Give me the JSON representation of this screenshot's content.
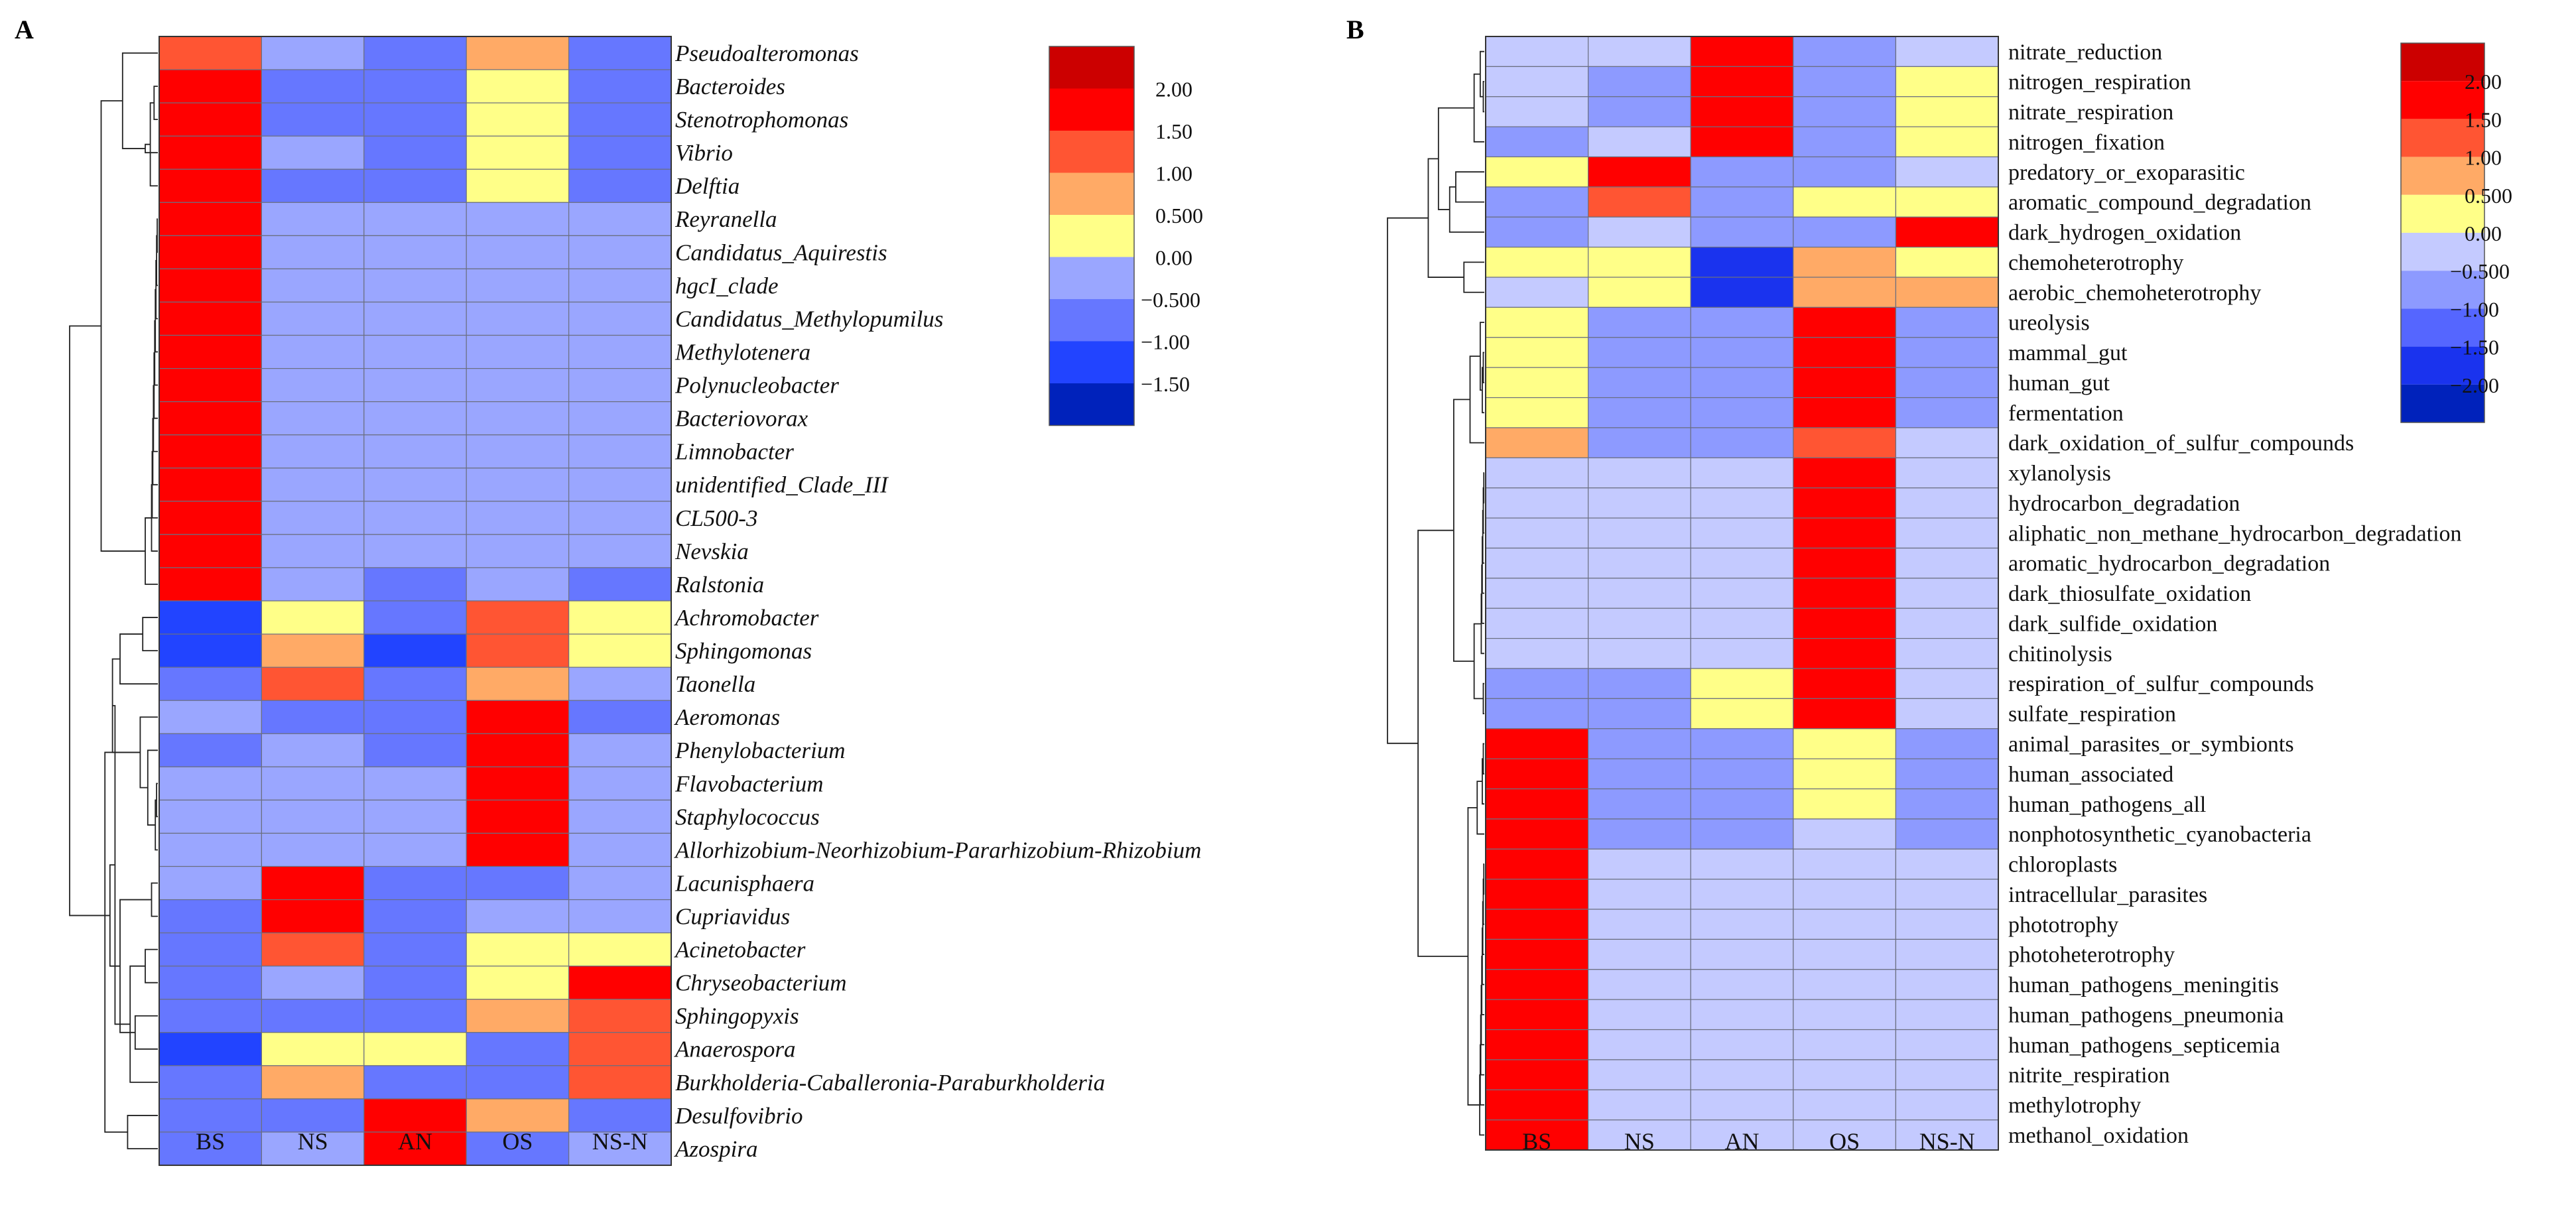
{
  "chart_data": [
    {
      "type": "heatmap",
      "panel_label": "A",
      "columns": [
        "BS",
        "NS",
        "AN",
        "OS",
        "NS-N"
      ],
      "rows": [
        "Pseudoalteromonas",
        "Bacteroides",
        "Stenotrophomonas",
        "Vibrio",
        "Delftia",
        "Reyranella",
        "Candidatus_Aquirestis",
        "hgcI_clade",
        "Candidatus_Methylopumilus",
        "Methylotenera",
        "Polynucleobacter",
        "Bacteriovorax",
        "Limnobacter",
        "unidentified_Clade_III",
        "CL500-3",
        "Nevskia",
        "Ralstonia",
        "Achromobacter",
        "Sphingomonas",
        "Taonella",
        "Aeromonas",
        "Phenylobacterium",
        "Flavobacterium",
        "Staphylococcus",
        "Allorhizobium-Neorhizobium-Pararhizobium-Rhizobium",
        "Lacunisphaera",
        "Cupriavidus",
        "Acinetobacter",
        "Chryseobacterium",
        "Sphingopyxis",
        "Anaerospora",
        "Burkholderia-Caballeronia-Paraburkholderia",
        "Desulfovibrio",
        "Azospira"
      ],
      "values": [
        [
          1.25,
          -0.25,
          -0.75,
          0.75,
          -0.75
        ],
        [
          1.75,
          -0.75,
          -0.75,
          0.25,
          -0.75
        ],
        [
          1.75,
          -0.75,
          -0.75,
          0.25,
          -0.75
        ],
        [
          1.75,
          -0.25,
          -0.75,
          0.25,
          -0.75
        ],
        [
          1.75,
          -0.75,
          -0.75,
          0.25,
          -0.75
        ],
        [
          1.75,
          -0.25,
          -0.25,
          -0.25,
          -0.25
        ],
        [
          1.75,
          -0.25,
          -0.25,
          -0.25,
          -0.25
        ],
        [
          1.75,
          -0.25,
          -0.25,
          -0.25,
          -0.25
        ],
        [
          1.75,
          -0.25,
          -0.25,
          -0.25,
          -0.25
        ],
        [
          1.75,
          -0.25,
          -0.25,
          -0.25,
          -0.25
        ],
        [
          1.75,
          -0.25,
          -0.25,
          -0.25,
          -0.25
        ],
        [
          1.75,
          -0.25,
          -0.25,
          -0.25,
          -0.25
        ],
        [
          1.75,
          -0.25,
          -0.25,
          -0.25,
          -0.25
        ],
        [
          1.75,
          -0.25,
          -0.25,
          -0.25,
          -0.25
        ],
        [
          1.75,
          -0.25,
          -0.25,
          -0.25,
          -0.25
        ],
        [
          1.75,
          -0.25,
          -0.25,
          -0.25,
          -0.25
        ],
        [
          1.75,
          -0.25,
          -0.75,
          -0.25,
          -0.75
        ],
        [
          -1.25,
          0.25,
          -0.75,
          1.25,
          0.25
        ],
        [
          -1.25,
          0.75,
          -1.25,
          1.25,
          0.25
        ],
        [
          -0.75,
          1.25,
          -0.75,
          0.75,
          -0.25
        ],
        [
          -0.25,
          -0.75,
          -0.75,
          1.75,
          -0.75
        ],
        [
          -0.75,
          -0.25,
          -0.75,
          1.75,
          -0.25
        ],
        [
          -0.25,
          -0.25,
          -0.25,
          1.75,
          -0.25
        ],
        [
          -0.25,
          -0.25,
          -0.25,
          1.75,
          -0.25
        ],
        [
          -0.25,
          -0.25,
          -0.25,
          1.75,
          -0.25
        ],
        [
          -0.25,
          1.75,
          -0.75,
          -0.75,
          -0.25
        ],
        [
          -0.75,
          1.75,
          -0.75,
          -0.25,
          -0.25
        ],
        [
          -0.75,
          1.25,
          -0.75,
          0.25,
          0.25
        ],
        [
          -0.75,
          -0.25,
          -0.75,
          0.25,
          1.75
        ],
        [
          -0.75,
          -0.75,
          -0.75,
          0.75,
          1.25
        ],
        [
          -1.25,
          0.25,
          0.25,
          -0.75,
          1.25
        ],
        [
          -0.75,
          0.75,
          -0.75,
          -0.75,
          1.25
        ],
        [
          -0.75,
          -0.75,
          1.75,
          0.75,
          -0.75
        ],
        [
          -0.75,
          -0.25,
          1.75,
          -0.75,
          -0.25
        ]
      ],
      "legend": {
        "tick_labels": [
          "2.00",
          "1.50",
          "1.00",
          "0.500",
          "0.00",
          "−0.500",
          "−1.00",
          "−1.50"
        ],
        "bins": [
          {
            "min": 2.0,
            "max": 2.5,
            "color": "#cc0000"
          },
          {
            "min": 1.5,
            "max": 2.0,
            "color": "#ff0000"
          },
          {
            "min": 1.0,
            "max": 1.5,
            "color": "#ff5533"
          },
          {
            "min": 0.5,
            "max": 1.0,
            "color": "#ffaa66"
          },
          {
            "min": 0.0,
            "max": 0.5,
            "color": "#ffff88"
          },
          {
            "min": -0.5,
            "max": 0.0,
            "color": "#9aa6ff"
          },
          {
            "min": -1.0,
            "max": -0.5,
            "color": "#6677ff"
          },
          {
            "min": -1.5,
            "max": -1.0,
            "color": "#2244ff"
          },
          {
            "min": -2.0,
            "max": -1.5,
            "color": "#0022bb"
          }
        ]
      },
      "dendrogram": {
        "leaf_order": [
          0,
          1,
          2,
          3,
          4,
          5,
          6,
          7,
          8,
          9,
          10,
          11,
          12,
          13,
          14,
          15,
          16,
          17,
          18,
          19,
          20,
          21,
          22,
          23,
          24,
          25,
          26,
          27,
          28,
          29,
          30,
          31,
          32,
          33
        ],
        "merges": [
          [
            1,
            2,
            0.03
          ],
          [
            34,
            4,
            0.06
          ],
          [
            35,
            3,
            0.1
          ],
          [
            0,
            36,
            0.28
          ],
          [
            5,
            6,
            0.005
          ],
          [
            38,
            7,
            0.01
          ],
          [
            39,
            8,
            0.015
          ],
          [
            40,
            9,
            0.02
          ],
          [
            41,
            10,
            0.025
          ],
          [
            42,
            11,
            0.03
          ],
          [
            43,
            12,
            0.035
          ],
          [
            44,
            13,
            0.04
          ],
          [
            45,
            14,
            0.045
          ],
          [
            46,
            15,
            0.05
          ],
          [
            47,
            16,
            0.1
          ],
          [
            37,
            48,
            0.45
          ],
          [
            17,
            18,
            0.12
          ],
          [
            50,
            19,
            0.3
          ],
          [
            22,
            23,
            0.01
          ],
          [
            52,
            24,
            0.02
          ],
          [
            21,
            53,
            0.08
          ],
          [
            20,
            54,
            0.14
          ],
          [
            51,
            55,
            0.36
          ],
          [
            25,
            26,
            0.05
          ],
          [
            27,
            28,
            0.1
          ],
          [
            29,
            30,
            0.18
          ],
          [
            58,
            31,
            0.22
          ],
          [
            57,
            59,
            0.3
          ],
          [
            56,
            60,
            0.34
          ],
          [
            32,
            33,
            0.24
          ],
          [
            61,
            62,
            0.38
          ],
          [
            55,
            63,
            0.42
          ],
          [
            49,
            64,
            0.7
          ]
        ]
      }
    },
    {
      "type": "heatmap",
      "panel_label": "B",
      "columns": [
        "BS",
        "NS",
        "AN",
        "OS",
        "NS-N"
      ],
      "rows": [
        "nitrate_reduction",
        "nitrogen_respiration",
        "nitrate_respiration",
        "nitrogen_fixation",
        "predatory_or_exoparasitic",
        "aromatic_compound_degradation",
        "dark_hydrogen_oxidation",
        "chemoheterotrophy",
        "aerobic_chemoheterotrophy",
        "ureolysis",
        "mammal_gut",
        "human_gut",
        "fermentation",
        "dark_oxidation_of_sulfur_compounds",
        "xylanolysis",
        "hydrocarbon_degradation",
        "aliphatic_non_methane_hydrocarbon_degradation",
        "aromatic_hydrocarbon_degradation",
        "dark_thiosulfate_oxidation",
        "dark_sulfide_oxidation",
        "chitinolysis",
        "respiration_of_sulfur_compounds",
        "sulfate_respiration",
        "animal_parasites_or_symbionts",
        "human_associated",
        "human_pathogens_all",
        "nonphotosynthetic_cyanobacteria",
        "chloroplasts",
        "intracellular_parasites",
        "phototrophy",
        "photoheterotrophy",
        "human_pathogens_meningitis",
        "human_pathogens_pneumonia",
        "human_pathogens_septicemia",
        "nitrite_respiration",
        "methylotrophy",
        "methanol_oxidation"
      ],
      "values": [
        [
          -0.25,
          -0.25,
          1.75,
          -0.75,
          -0.25
        ],
        [
          -0.25,
          -0.75,
          1.75,
          -0.75,
          0.25
        ],
        [
          -0.25,
          -0.75,
          1.75,
          -0.75,
          0.25
        ],
        [
          -0.75,
          -0.25,
          1.75,
          -0.75,
          0.25
        ],
        [
          0.25,
          1.75,
          -0.75,
          -0.75,
          -0.25
        ],
        [
          -0.75,
          1.25,
          -0.75,
          0.25,
          0.25
        ],
        [
          -0.75,
          -0.25,
          -0.75,
          -0.75,
          1.75
        ],
        [
          0.25,
          0.25,
          -1.75,
          0.75,
          0.25
        ],
        [
          -0.25,
          0.25,
          -1.75,
          0.75,
          0.75
        ],
        [
          0.25,
          -0.75,
          -0.75,
          1.75,
          -0.75
        ],
        [
          0.25,
          -0.75,
          -0.75,
          1.75,
          -0.75
        ],
        [
          0.25,
          -0.75,
          -0.75,
          1.75,
          -0.75
        ],
        [
          0.25,
          -0.75,
          -0.75,
          1.75,
          -0.75
        ],
        [
          0.75,
          -0.75,
          -0.75,
          1.25,
          -0.25
        ],
        [
          -0.25,
          -0.25,
          -0.25,
          1.75,
          -0.25
        ],
        [
          -0.25,
          -0.25,
          -0.25,
          1.75,
          -0.25
        ],
        [
          -0.25,
          -0.25,
          -0.25,
          1.75,
          -0.25
        ],
        [
          -0.25,
          -0.25,
          -0.25,
          1.75,
          -0.25
        ],
        [
          -0.25,
          -0.25,
          -0.25,
          1.75,
          -0.25
        ],
        [
          -0.25,
          -0.25,
          -0.25,
          1.75,
          -0.25
        ],
        [
          -0.25,
          -0.25,
          -0.25,
          1.75,
          -0.25
        ],
        [
          -0.75,
          -0.75,
          0.25,
          1.75,
          -0.25
        ],
        [
          -0.75,
          -0.75,
          0.25,
          1.75,
          -0.25
        ],
        [
          1.75,
          -0.75,
          -0.75,
          0.25,
          -0.75
        ],
        [
          1.75,
          -0.75,
          -0.75,
          0.25,
          -0.75
        ],
        [
          1.75,
          -0.75,
          -0.75,
          0.25,
          -0.75
        ],
        [
          1.75,
          -0.75,
          -0.75,
          -0.25,
          -0.75
        ],
        [
          1.75,
          -0.25,
          -0.25,
          -0.25,
          -0.25
        ],
        [
          1.75,
          -0.25,
          -0.25,
          -0.25,
          -0.25
        ],
        [
          1.75,
          -0.25,
          -0.25,
          -0.25,
          -0.25
        ],
        [
          1.75,
          -0.25,
          -0.25,
          -0.25,
          -0.25
        ],
        [
          1.75,
          -0.25,
          -0.25,
          -0.25,
          -0.25
        ],
        [
          1.75,
          -0.25,
          -0.25,
          -0.25,
          -0.25
        ],
        [
          1.75,
          -0.25,
          -0.25,
          -0.25,
          -0.25
        ],
        [
          1.75,
          -0.25,
          -0.25,
          -0.25,
          -0.25
        ],
        [
          1.75,
          -0.25,
          -0.25,
          -0.25,
          -0.25
        ],
        [
          1.75,
          -0.25,
          -0.25,
          -0.25,
          -0.25
        ]
      ],
      "legend": {
        "tick_labels": [
          "2.00",
          "1.50",
          "1.00",
          "0.500",
          "0.00",
          "−0.500",
          "−1.00",
          "−1.50",
          "−2.00"
        ],
        "bins": [
          {
            "min": 2.0,
            "max": 2.5,
            "color": "#cc0000"
          },
          {
            "min": 1.5,
            "max": 2.0,
            "color": "#ff0000"
          },
          {
            "min": 1.0,
            "max": 1.5,
            "color": "#ff5533"
          },
          {
            "min": 0.5,
            "max": 1.0,
            "color": "#ffaa66"
          },
          {
            "min": 0.0,
            "max": 0.5,
            "color": "#ffff88"
          },
          {
            "min": -0.5,
            "max": 0.0,
            "color": "#c4caff"
          },
          {
            "min": -1.0,
            "max": -0.5,
            "color": "#8d9aff"
          },
          {
            "min": -1.5,
            "max": -1.0,
            "color": "#5566ff"
          },
          {
            "min": -2.0,
            "max": -1.5,
            "color": "#1a33ee"
          },
          {
            "min": -2.5,
            "max": -2.0,
            "color": "#0022bb"
          }
        ]
      },
      "dendrogram": {
        "leaf_order": [
          0,
          1,
          2,
          3,
          4,
          5,
          6,
          7,
          8,
          9,
          10,
          11,
          12,
          13,
          14,
          15,
          16,
          17,
          18,
          19,
          20,
          21,
          22,
          23,
          24,
          25,
          26,
          27,
          28,
          29,
          30,
          31,
          32,
          33,
          34,
          35,
          36
        ],
        "merges": [
          [
            1,
            2,
            0.01
          ],
          [
            37,
            0,
            0.04
          ],
          [
            38,
            3,
            0.1
          ],
          [
            4,
            5,
            0.28
          ],
          [
            40,
            6,
            0.34
          ],
          [
            39,
            41,
            0.45
          ],
          [
            7,
            8,
            0.2
          ],
          [
            42,
            43,
            0.55
          ],
          [
            10,
            11,
            0.01
          ],
          [
            45,
            12,
            0.02
          ],
          [
            9,
            46,
            0.04
          ],
          [
            47,
            13,
            0.14
          ],
          [
            14,
            15,
            0.005
          ],
          [
            49,
            16,
            0.01
          ],
          [
            50,
            17,
            0.015
          ],
          [
            51,
            18,
            0.02
          ],
          [
            52,
            19,
            0.025
          ],
          [
            53,
            20,
            0.03
          ],
          [
            21,
            22,
            0.01
          ],
          [
            54,
            55,
            0.1
          ],
          [
            48,
            56,
            0.3
          ],
          [
            23,
            24,
            0.01
          ],
          [
            58,
            25,
            0.02
          ],
          [
            59,
            26,
            0.07
          ],
          [
            27,
            28,
            0.005
          ],
          [
            61,
            29,
            0.01
          ],
          [
            62,
            30,
            0.015
          ],
          [
            63,
            31,
            0.02
          ],
          [
            64,
            32,
            0.025
          ],
          [
            65,
            33,
            0.03
          ],
          [
            66,
            34,
            0.035
          ],
          [
            67,
            35,
            0.04
          ],
          [
            68,
            36,
            0.045
          ],
          [
            60,
            69,
            0.16
          ],
          [
            57,
            70,
            0.65
          ],
          [
            44,
            71,
            0.95
          ]
        ]
      }
    }
  ]
}
